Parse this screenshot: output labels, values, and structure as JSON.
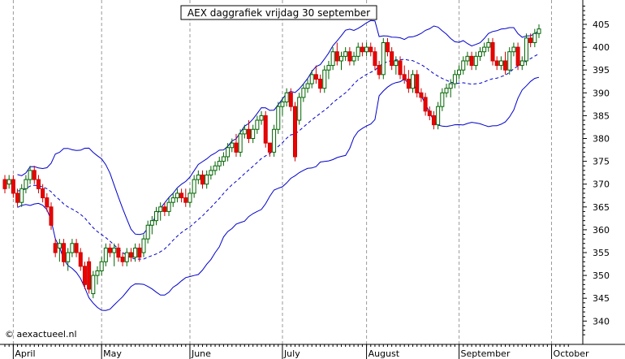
{
  "chart_data": {
    "type": "candlestick",
    "title": "AEX daggrafiek vrijdag 30 september",
    "credit": "© aexactueel.nl",
    "ylim": [
      335,
      410
    ],
    "yticks": [
      340,
      345,
      350,
      355,
      360,
      365,
      370,
      375,
      380,
      385,
      390,
      395,
      400,
      405
    ],
    "grid": true,
    "months": [
      {
        "label": "April",
        "day": 2
      },
      {
        "label": "May",
        "day": 23
      },
      {
        "label": "June",
        "day": 44
      },
      {
        "label": "July",
        "day": 66
      },
      {
        "label": "August",
        "day": 86
      },
      {
        "label": "September",
        "day": 108
      },
      {
        "label": "October",
        "day": 130
      }
    ],
    "candles": [
      [
        0,
        371,
        372,
        368,
        369
      ],
      [
        1,
        370,
        372,
        369,
        371
      ],
      [
        2,
        371,
        372,
        367,
        368
      ],
      [
        3,
        368,
        369,
        365,
        366
      ],
      [
        4,
        366,
        370,
        365,
        369
      ],
      [
        5,
        369,
        372,
        368,
        371
      ],
      [
        6,
        371,
        374,
        370,
        373
      ],
      [
        7,
        373,
        374,
        370,
        371
      ],
      [
        8,
        371,
        372,
        368,
        369
      ],
      [
        9,
        369,
        370,
        366,
        367
      ],
      [
        10,
        367,
        368,
        364,
        365
      ],
      [
        11,
        365,
        366,
        360,
        361
      ],
      [
        12,
        357,
        358,
        354,
        355
      ],
      [
        13,
        356,
        358,
        353,
        357
      ],
      [
        14,
        357,
        358,
        352,
        353
      ],
      [
        15,
        353,
        356,
        351,
        355
      ],
      [
        16,
        355,
        358,
        354,
        357
      ],
      [
        17,
        357,
        358,
        354,
        355
      ],
      [
        18,
        355,
        356,
        351,
        352
      ],
      [
        19,
        352,
        353,
        347,
        348
      ],
      [
        20,
        353,
        354,
        346,
        347
      ],
      [
        21,
        346,
        351,
        345,
        350
      ],
      [
        22,
        350,
        352,
        348,
        351
      ],
      [
        23,
        351,
        354,
        350,
        353
      ],
      [
        24,
        353,
        357,
        352,
        356
      ],
      [
        25,
        356,
        357,
        354,
        355
      ],
      [
        26,
        355,
        357,
        352,
        356
      ],
      [
        27,
        356,
        357,
        353,
        354
      ],
      [
        28,
        354,
        355,
        352,
        353
      ],
      [
        29,
        353,
        356,
        352,
        355
      ],
      [
        30,
        355,
        356,
        353,
        354
      ],
      [
        31,
        354,
        357,
        353,
        356
      ],
      [
        32,
        356,
        357,
        353,
        354
      ],
      [
        33,
        355,
        359,
        354,
        358
      ],
      [
        34,
        358,
        362,
        357,
        361
      ],
      [
        35,
        361,
        363,
        359,
        362
      ],
      [
        36,
        362,
        365,
        361,
        364
      ],
      [
        37,
        364,
        366,
        362,
        365
      ],
      [
        38,
        365,
        366,
        363,
        364
      ],
      [
        39,
        364,
        367,
        363,
        366
      ],
      [
        40,
        366,
        368,
        365,
        367
      ],
      [
        41,
        367,
        369,
        366,
        368
      ],
      [
        42,
        368,
        369,
        366,
        367
      ],
      [
        43,
        367,
        369,
        365,
        366
      ],
      [
        44,
        366,
        369,
        365,
        368
      ],
      [
        45,
        368,
        372,
        367,
        371
      ],
      [
        46,
        371,
        373,
        370,
        372
      ],
      [
        47,
        372,
        373,
        369,
        370
      ],
      [
        48,
        370,
        373,
        369,
        372
      ],
      [
        49,
        372,
        374,
        371,
        373
      ],
      [
        50,
        373,
        375,
        372,
        374
      ],
      [
        51,
        374,
        376,
        373,
        375
      ],
      [
        52,
        375,
        377,
        374,
        376
      ],
      [
        53,
        376,
        379,
        375,
        378
      ],
      [
        54,
        378,
        380,
        377,
        379
      ],
      [
        55,
        379,
        381,
        376,
        377
      ],
      [
        56,
        377,
        382,
        376,
        381
      ],
      [
        57,
        381,
        383,
        380,
        382
      ],
      [
        58,
        382,
        384,
        379,
        380
      ],
      [
        59,
        380,
        383,
        379,
        382
      ],
      [
        60,
        382,
        385,
        381,
        384
      ],
      [
        61,
        384,
        386,
        383,
        385
      ],
      [
        62,
        385,
        386,
        378,
        379
      ],
      [
        63,
        379,
        379,
        376,
        377
      ],
      [
        64,
        377,
        383,
        376,
        382
      ],
      [
        65,
        382,
        388,
        381,
        387
      ],
      [
        66,
        387,
        389,
        385,
        388
      ],
      [
        67,
        388,
        391,
        387,
        390
      ],
      [
        68,
        390,
        391,
        386,
        387
      ],
      [
        69,
        387,
        388,
        375,
        376
      ],
      [
        70,
        384,
        390,
        383,
        389
      ],
      [
        71,
        389,
        392,
        388,
        391
      ],
      [
        72,
        391,
        393,
        390,
        392
      ],
      [
        73,
        392,
        395,
        391,
        394
      ],
      [
        74,
        394,
        396,
        392,
        393
      ],
      [
        75,
        393,
        394,
        390,
        391
      ],
      [
        76,
        391,
        396,
        390,
        395
      ],
      [
        77,
        395,
        397,
        393,
        396
      ],
      [
        78,
        396,
        400,
        395,
        399
      ],
      [
        79,
        399,
        401,
        396,
        397
      ],
      [
        80,
        397,
        399,
        395,
        398
      ],
      [
        81,
        398,
        400,
        397,
        399
      ],
      [
        82,
        399,
        400,
        396,
        397
      ],
      [
        83,
        397,
        399,
        396,
        398
      ],
      [
        84,
        398,
        401,
        397,
        400
      ],
      [
        85,
        400,
        401,
        398,
        399
      ],
      [
        86,
        399,
        401,
        398,
        400
      ],
      [
        87,
        400,
        401,
        398,
        399
      ],
      [
        88,
        399,
        400,
        395,
        396
      ],
      [
        89,
        396,
        397,
        393,
        394
      ],
      [
        90,
        394,
        402,
        393,
        401
      ],
      [
        91,
        401,
        402,
        398,
        399
      ],
      [
        92,
        399,
        400,
        395,
        396
      ],
      [
        93,
        396,
        398,
        394,
        397
      ],
      [
        94,
        397,
        398,
        393,
        394
      ],
      [
        95,
        394,
        396,
        392,
        393
      ],
      [
        96,
        393,
        395,
        390,
        391
      ],
      [
        97,
        391,
        395,
        390,
        394
      ],
      [
        98,
        394,
        395,
        389,
        390
      ],
      [
        99,
        390,
        391,
        388,
        389
      ],
      [
        100,
        389,
        390,
        385,
        386
      ],
      [
        101,
        386,
        387,
        384,
        385
      ],
      [
        102,
        385,
        386,
        382,
        383
      ],
      [
        103,
        383,
        388,
        382,
        387
      ],
      [
        104,
        387,
        391,
        386,
        390
      ],
      [
        105,
        390,
        392,
        389,
        391
      ],
      [
        106,
        391,
        393,
        389,
        392
      ],
      [
        107,
        392,
        395,
        391,
        394
      ],
      [
        108,
        394,
        396,
        393,
        395
      ],
      [
        109,
        395,
        398,
        394,
        397
      ],
      [
        110,
        397,
        399,
        396,
        398
      ],
      [
        111,
        398,
        399,
        395,
        396
      ],
      [
        112,
        396,
        399,
        395,
        398
      ],
      [
        113,
        398,
        400,
        397,
        399
      ],
      [
        114,
        399,
        401,
        398,
        400
      ],
      [
        115,
        400,
        402,
        399,
        401
      ],
      [
        116,
        401,
        402,
        396,
        397
      ],
      [
        117,
        397,
        398,
        395,
        396
      ],
      [
        118,
        396,
        398,
        395,
        397
      ],
      [
        119,
        397,
        399,
        394,
        395
      ],
      [
        120,
        395,
        400,
        394,
        399
      ],
      [
        121,
        399,
        401,
        398,
        400
      ],
      [
        122,
        400,
        401,
        395,
        396
      ],
      [
        123,
        396,
        398,
        395,
        397
      ],
      [
        124,
        397,
        403,
        396,
        402
      ],
      [
        125,
        402,
        403,
        400,
        401
      ],
      [
        126,
        401,
        404,
        400,
        403
      ],
      [
        127,
        403,
        405,
        402,
        404
      ]
    ]
  }
}
